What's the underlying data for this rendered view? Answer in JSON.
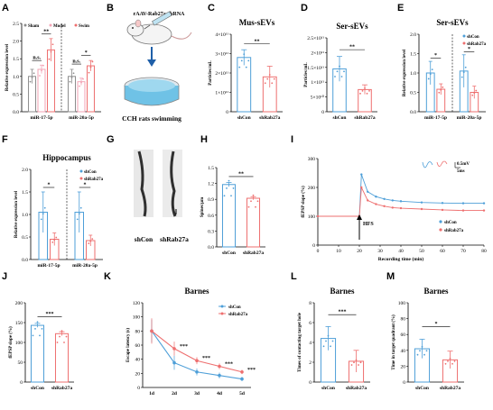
{
  "colors": {
    "blue": "#4e9fd8",
    "red": "#ee6f6f",
    "gray": "#8c8c8c",
    "pink": "#f3a3b5",
    "mixed": "#9e7cbf"
  },
  "panels": {
    "A": {
      "label": "A"
    },
    "B": {
      "label": "B"
    },
    "C": {
      "label": "C"
    },
    "D": {
      "label": "D"
    },
    "E": {
      "label": "E"
    },
    "F": {
      "label": "F"
    },
    "G": {
      "label": "G"
    },
    "H": {
      "label": "H"
    },
    "I": {
      "label": "I"
    },
    "J": {
      "label": "J"
    },
    "K": {
      "label": "K"
    },
    "L": {
      "label": "L"
    },
    "M": {
      "label": "M"
    }
  },
  "diagram_B": {
    "title": "rAAV-Rab27a-shRNA",
    "caption": "CCH rats swimming"
  },
  "images_G": {
    "labels": [
      "shCon",
      "shRab27a"
    ]
  },
  "chart_data": [
    {
      "id": "A",
      "type": "bar",
      "title": "",
      "ylabel": "Relative expression level",
      "ylim": [
        0,
        2.5
      ],
      "yticks": [
        "0.0",
        "0.5",
        "1.0",
        "1.5",
        "2.0",
        "2.5"
      ],
      "categories": [
        "miR-17-5p",
        "miR-20a-5p"
      ],
      "series": [
        {
          "name": "Sham",
          "values": [
            1.0,
            1.0
          ],
          "errors": [
            0.2,
            0.2
          ]
        },
        {
          "name": "Model",
          "values": [
            1.2,
            0.85
          ],
          "errors": [
            0.12,
            0.1
          ]
        },
        {
          "name": "Swim",
          "values": [
            1.75,
            1.3
          ],
          "errors": [
            0.32,
            0.15
          ]
        }
      ],
      "significance": [
        {
          "text": "n.s.",
          "group": 0,
          "from": 0,
          "to": 1,
          "y": 1.45
        },
        {
          "text": "**",
          "group": 0,
          "from": 1,
          "to": 2,
          "y": 2.2
        },
        {
          "text": "n.s.",
          "group": 1,
          "from": 0,
          "to": 1,
          "y": 1.35
        },
        {
          "text": "*",
          "group": 1,
          "from": 1,
          "to": 2,
          "y": 1.6
        }
      ]
    },
    {
      "id": "C",
      "type": "bar",
      "title": "Mus-sEVs",
      "ylabel": "Particles/mL",
      "ylim": [
        0,
        4
      ],
      "yticks": [
        "0",
        "1×10¹¹",
        "2×10¹¹",
        "3×10¹¹",
        "4×10¹¹"
      ],
      "categories": [
        "shCon",
        "shRab27a"
      ],
      "values": [
        2.8,
        1.8
      ],
      "errors": [
        0.4,
        0.55
      ],
      "significance": [
        {
          "text": "**",
          "from": 0,
          "to": 1,
          "y": 3.5
        }
      ]
    },
    {
      "id": "D",
      "type": "bar",
      "title": "Ser-sEVs",
      "ylabel": "Particles/mL",
      "ylim": [
        0,
        2.5
      ],
      "yticks": [
        "0",
        "5×10¹⁰",
        "1×10¹¹",
        "1.5×10¹¹",
        "2×10¹¹",
        "2.5×10¹¹"
      ],
      "categories": [
        "shCon",
        "shRab27a"
      ],
      "values": [
        1.45,
        0.75
      ],
      "errors": [
        0.42,
        0.16
      ],
      "significance": [
        {
          "text": "**",
          "from": 0,
          "to": 1,
          "y": 2.1
        }
      ]
    },
    {
      "id": "E",
      "type": "bar",
      "title": "Ser-sEVs",
      "ylabel": "Relative expression level",
      "ylim": [
        0,
        2.0
      ],
      "yticks": [
        "0.0",
        "0.5",
        "1.0",
        "1.5",
        "2.0"
      ],
      "categories": [
        "miR-17-5p",
        "miR-20a-5p"
      ],
      "series": [
        {
          "name": "shCon",
          "values": [
            1.0,
            1.05
          ],
          "errors": [
            0.3,
            0.42
          ]
        },
        {
          "name": "shRab27a",
          "values": [
            0.58,
            0.5
          ],
          "errors": [
            0.14,
            0.16
          ]
        }
      ],
      "significance": [
        {
          "text": "*",
          "group": 0,
          "from": 0,
          "to": 1,
          "y": 1.38
        },
        {
          "text": "*",
          "group": 1,
          "from": 0,
          "to": 1,
          "y": 1.55
        }
      ]
    },
    {
      "id": "F",
      "type": "bar",
      "title": "Hippocampus",
      "ylabel": "Relative expression level",
      "ylim": [
        0,
        2.0
      ],
      "yticks": [
        "0.0",
        "0.5",
        "1.0",
        "1.5",
        "2.0"
      ],
      "categories": [
        "miR-17-5p",
        "miR-20a-5p"
      ],
      "series": [
        {
          "name": "shCon",
          "values": [
            1.05,
            1.05
          ],
          "errors": [
            0.45,
            0.45
          ]
        },
        {
          "name": "shRab27a",
          "values": [
            0.45,
            0.42
          ],
          "errors": [
            0.14,
            0.12
          ]
        }
      ],
      "significance": [
        {
          "text": "*",
          "group": 0,
          "from": 0,
          "to": 1,
          "y": 1.6
        },
        {
          "text": "*",
          "group": 1,
          "from": 0,
          "to": 1,
          "y": 1.6
        }
      ]
    },
    {
      "id": "H",
      "type": "bar",
      "title": "",
      "ylabel": "Spines/μm",
      "ylim": [
        0,
        1.5
      ],
      "yticks": [
        "0.0",
        "0.3",
        "0.6",
        "0.9",
        "1.2",
        "1.5"
      ],
      "categories": [
        "shCon",
        "shRab27a"
      ],
      "values": [
        1.18,
        0.92
      ],
      "errors": [
        0.04,
        0.03
      ],
      "significance": [
        {
          "text": "**",
          "from": 0,
          "to": 1,
          "y": 1.33
        }
      ]
    },
    {
      "id": "I",
      "type": "scatter",
      "title": "",
      "xlabel": "Recording time (min)",
      "ylabel": "fEPSP slope (%)",
      "xlim": [
        0,
        80
      ],
      "ylim": [
        0,
        300
      ],
      "xticks": [
        "0",
        "10",
        "20",
        "30",
        "40",
        "50",
        "60",
        "70",
        "80"
      ],
      "yticks": [
        "0",
        "100",
        "200",
        "300"
      ],
      "annotation": "HFS",
      "annotation_x": 20,
      "scale_v": "0.5mV",
      "scale_h": "5ms",
      "series": [
        {
          "name": "shCon",
          "x": [
            0,
            20,
            21,
            24,
            28,
            32,
            36,
            40,
            50,
            60,
            70,
            80
          ],
          "y": [
            100,
            100,
            245,
            185,
            168,
            160,
            155,
            152,
            148,
            146,
            145,
            145
          ]
        },
        {
          "name": "shRab27a",
          "x": [
            0,
            20,
            21,
            24,
            28,
            32,
            36,
            40,
            50,
            60,
            70,
            80
          ],
          "y": [
            100,
            100,
            200,
            155,
            142,
            135,
            130,
            128,
            125,
            122,
            120,
            120
          ]
        }
      ]
    },
    {
      "id": "J",
      "type": "bar",
      "title": "",
      "ylabel": "fEPSP slope (%)",
      "ylim": [
        0,
        200
      ],
      "yticks": [
        "0",
        "50",
        "100",
        "150",
        "200"
      ],
      "categories": [
        "shCon",
        "shRab27a"
      ],
      "values": [
        143,
        122
      ],
      "errors": [
        5,
        5
      ],
      "significance": [
        {
          "text": "***",
          "from": 0,
          "to": 1,
          "y": 165
        }
      ]
    },
    {
      "id": "K",
      "type": "line",
      "title": "Barnes",
      "xlabel": "",
      "ylabel": "Escape latency (s)",
      "ylim": [
        0,
        120
      ],
      "yticks": [
        "0",
        "20",
        "40",
        "60",
        "80",
        "100",
        "120"
      ],
      "categories": [
        "1d",
        "2d",
        "3d",
        "4d",
        "5d"
      ],
      "series": [
        {
          "name": "shCon",
          "values": [
            80,
            35,
            22,
            17,
            12
          ],
          "errors": [
            16,
            10,
            5,
            4,
            3
          ]
        },
        {
          "name": "shRab27a",
          "values": [
            80,
            55,
            38,
            30,
            22
          ],
          "errors": [
            18,
            10,
            5,
            4,
            3
          ]
        }
      ],
      "significance": [
        "",
        "***",
        "***",
        "***",
        "***"
      ]
    },
    {
      "id": "L",
      "type": "bar",
      "title": "Barnes",
      "ylabel": "Times of contacting target hole",
      "ylim": [
        0,
        8
      ],
      "yticks": [
        "0",
        "2",
        "4",
        "6",
        "8"
      ],
      "categories": [
        "shCon",
        "shRab27a"
      ],
      "values": [
        4.4,
        2.1
      ],
      "errors": [
        1.2,
        1.1
      ],
      "significance": [
        {
          "text": "***",
          "from": 0,
          "to": 1,
          "y": 6.8
        }
      ]
    },
    {
      "id": "M",
      "type": "bar",
      "title": "Barnes",
      "ylabel": "Time in target quadrant (%)",
      "ylim": [
        0,
        100
      ],
      "yticks": [
        "0",
        "20",
        "40",
        "60",
        "80",
        "100"
      ],
      "categories": [
        "shCon",
        "shRab27a"
      ],
      "values": [
        42,
        28
      ],
      "errors": [
        12,
        11
      ],
      "significance": [
        {
          "text": "*",
          "from": 0,
          "to": 1,
          "y": 70
        }
      ]
    }
  ]
}
